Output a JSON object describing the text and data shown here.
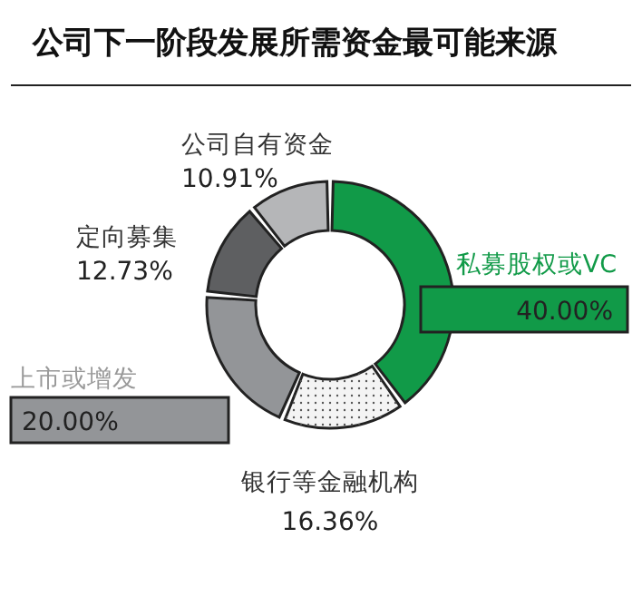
{
  "chart_data": {
    "type": "donut",
    "title": "公司下一阶段发展所需资金最可能来源",
    "categories": [
      "私募股权或VC",
      "银行等金融机构",
      "上市或增发",
      "定向募集",
      "公司自有资金"
    ],
    "values": [
      40.0,
      16.36,
      20.0,
      12.73,
      10.91
    ],
    "colors": [
      "#119a48",
      "#f4f4f4",
      "#939598",
      "#5e5f61",
      "#b5b6b8"
    ],
    "value_labels": [
      "40.00%",
      "16.36%",
      "20.00%",
      "12.73%",
      "10.91%"
    ]
  }
}
